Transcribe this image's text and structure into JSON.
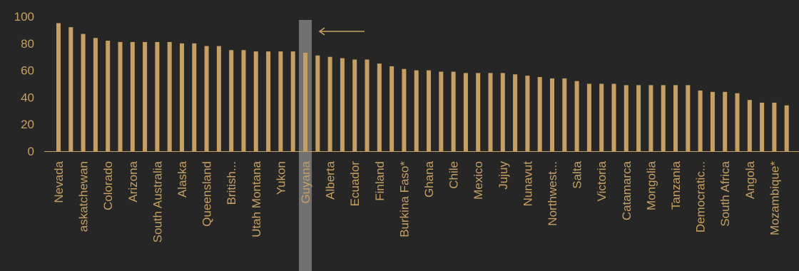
{
  "chart_data": {
    "type": "bar",
    "title": "",
    "xlabel": "",
    "ylabel": "",
    "ylim": [
      0,
      100
    ],
    "yticks": [
      0,
      20,
      40,
      60,
      80,
      100
    ],
    "grid": false,
    "highlight": "Guyana",
    "colors": {
      "background": "#262626",
      "bar": "#c6a063",
      "text": "#c6a063",
      "highlight_band": "#7f7f7f",
      "axis": "#c6a063"
    },
    "categories": [
      "Nevada",
      "",
      "askatchewan",
      "",
      "Colorado",
      "",
      "Arizona",
      "",
      "South Australia",
      "",
      "Alaska",
      "",
      "Queensland",
      "",
      "British...",
      "",
      "Utah Montana",
      "",
      "Yukon",
      "",
      "Guyana",
      "",
      "Alberta",
      "",
      "Ecuador",
      "",
      "Finland",
      "",
      "Burkina Faso*",
      "",
      "Ghana",
      "",
      "Chile",
      "",
      "Mexico",
      "",
      "Jujuy",
      "",
      "Nunavut",
      "",
      "Northwest...",
      "",
      "Salta",
      "",
      "Victoria",
      "",
      "Catamarca",
      "",
      "Mongolia",
      "",
      "Tanzania",
      "",
      "Democratic...",
      "",
      "South Africa",
      "",
      "Angola",
      "",
      "Mozambique*",
      ""
    ],
    "values": [
      95,
      92,
      87,
      84,
      82,
      81,
      81,
      81,
      81,
      81,
      80,
      80,
      78,
      78,
      75,
      75,
      74,
      74,
      74,
      74,
      73,
      71,
      70,
      69,
      68,
      68,
      65,
      63,
      61,
      60,
      60,
      59,
      59,
      58,
      58,
      58,
      58,
      57,
      56,
      55,
      54,
      54,
      52,
      50,
      50,
      50,
      49,
      49,
      49,
      49,
      49,
      49,
      45,
      44,
      44,
      43,
      38,
      36,
      36,
      34
    ]
  }
}
